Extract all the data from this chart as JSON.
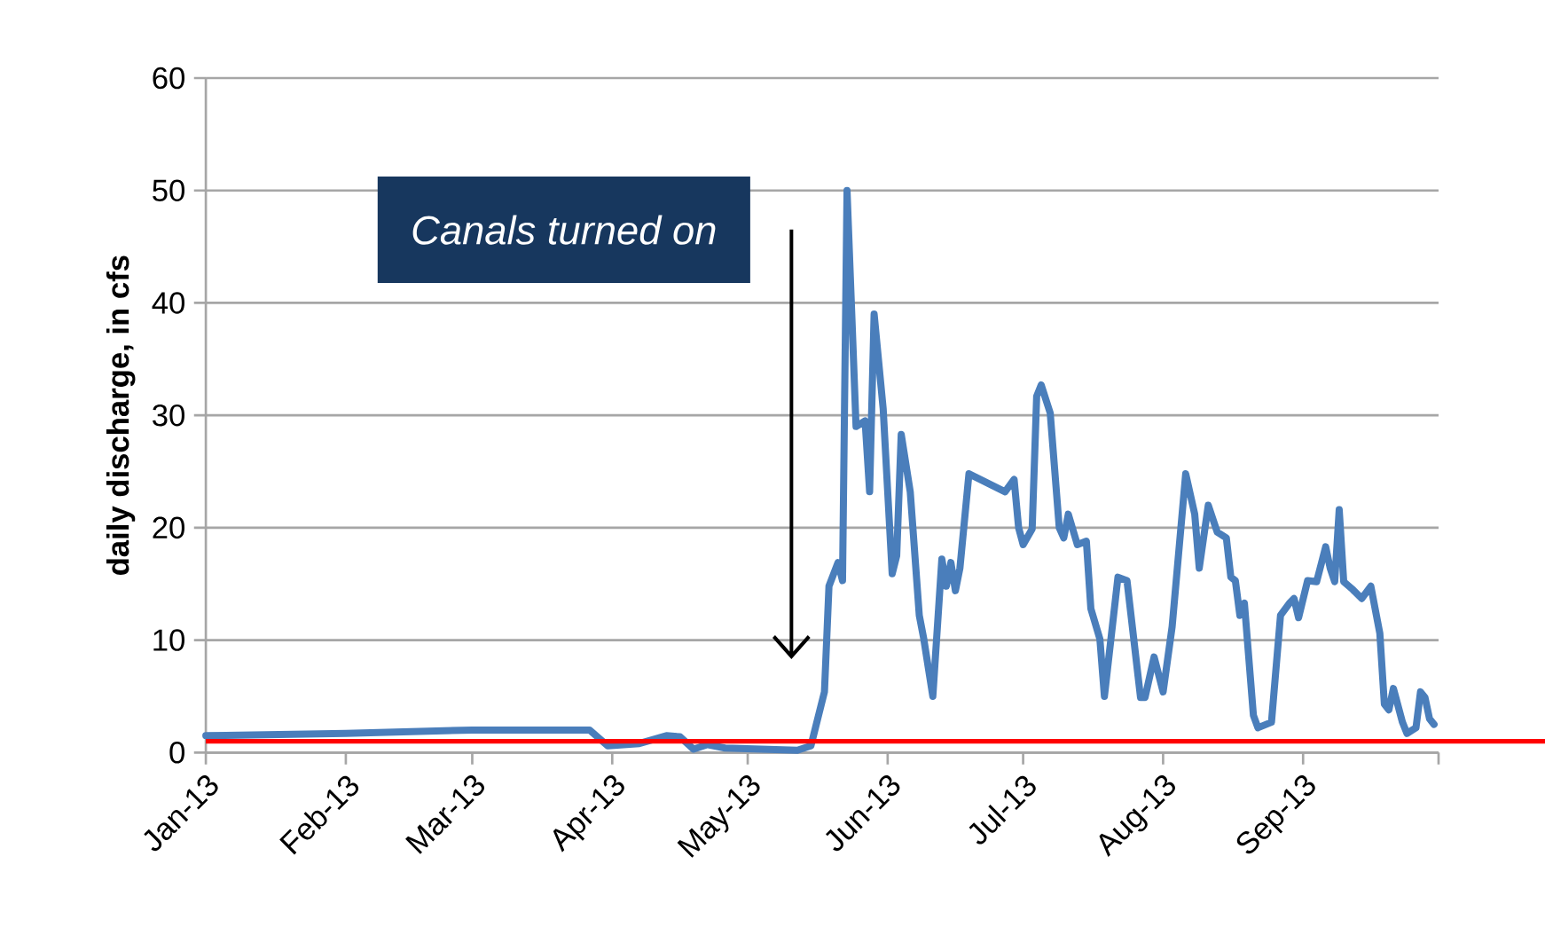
{
  "chart_data": {
    "type": "line",
    "ylabel": "daily discharge, in cfs",
    "xlim": [
      "2013-01-01",
      "2013-10-01"
    ],
    "xticks": [
      {
        "value": "2013-01-01",
        "label": "Jan-13"
      },
      {
        "value": "2013-02-01",
        "label": "Feb-13"
      },
      {
        "value": "2013-03-01",
        "label": "Mar-13"
      },
      {
        "value": "2013-04-01",
        "label": "Apr-13"
      },
      {
        "value": "2013-05-01",
        "label": "May-13"
      },
      {
        "value": "2013-06-01",
        "label": "Jun-13"
      },
      {
        "value": "2013-07-01",
        "label": "Jul-13"
      },
      {
        "value": "2013-08-01",
        "label": "Aug-13"
      },
      {
        "value": "2013-09-01",
        "label": "Sep-13"
      },
      {
        "value": "2013-10-01",
        "label": null
      }
    ],
    "ylim": [
      0,
      60
    ],
    "yticks": [
      0,
      10,
      20,
      30,
      40,
      50,
      60
    ],
    "grid": "y",
    "marker": "none",
    "line_style": "solid",
    "x": [
      "2013-01-01",
      "2013-02-01",
      "2013-03-01",
      "2013-03-27",
      "2013-03-31",
      "2013-04-07",
      "2013-04-13",
      "2013-04-16",
      "2013-04-19",
      "2013-04-22",
      "2013-04-26",
      "2013-05-12",
      "2013-05-15",
      "2013-05-16",
      "2013-05-18",
      "2013-05-19",
      "2013-05-21",
      "2013-05-22",
      "2013-05-23",
      "2013-05-25",
      "2013-05-27",
      "2013-05-28",
      "2013-05-29",
      "2013-05-31",
      "2013-06-02",
      "2013-06-03",
      "2013-06-04",
      "2013-06-06",
      "2013-06-08",
      "2013-06-09",
      "2013-06-11",
      "2013-06-13",
      "2013-06-14",
      "2013-06-15",
      "2013-06-16",
      "2013-06-17",
      "2013-06-19",
      "2013-06-27",
      "2013-06-29",
      "2013-06-30",
      "2013-07-01",
      "2013-07-03",
      "2013-07-04",
      "2013-07-05",
      "2013-07-07",
      "2013-07-09",
      "2013-07-10",
      "2013-07-11",
      "2013-07-13",
      "2013-07-15",
      "2013-07-16",
      "2013-07-18",
      "2013-07-19",
      "2013-07-22",
      "2013-07-24",
      "2013-07-27",
      "2013-07-28",
      "2013-07-30",
      "2013-08-01",
      "2013-08-03",
      "2013-08-06",
      "2013-08-08",
      "2013-08-09",
      "2013-08-11",
      "2013-08-13",
      "2013-08-15",
      "2013-08-16",
      "2013-08-17",
      "2013-08-18",
      "2013-08-19",
      "2013-08-21",
      "2013-08-22",
      "2013-08-25",
      "2013-08-27",
      "2013-08-29",
      "2013-08-30",
      "2013-08-31",
      "2013-09-02",
      "2013-09-04",
      "2013-09-06",
      "2013-09-07",
      "2013-09-08",
      "2013-09-09",
      "2013-09-10",
      "2013-09-12",
      "2013-09-14",
      "2013-09-16",
      "2013-09-18",
      "2013-09-19",
      "2013-09-20",
      "2013-09-21",
      "2013-09-23",
      "2013-09-24",
      "2013-09-26",
      "2013-09-27",
      "2013-09-28",
      "2013-09-29",
      "2013-09-30"
    ],
    "series": [
      {
        "color": "#4a7ebb",
        "values": [
          1.5,
          1.7,
          2.0,
          2.0,
          0.6,
          0.8,
          1.5,
          1.4,
          0.3,
          0.7,
          0.4,
          0.2,
          0.6,
          2.2,
          5.4,
          14.8,
          16.9,
          15.3,
          50,
          29,
          29.5,
          23.2,
          39,
          30.6,
          15.9,
          17.5,
          28.3,
          23.2,
          12.2,
          10.1,
          5,
          17.2,
          14.8,
          16.9,
          14.4,
          16.4,
          24.8,
          23.2,
          24.3,
          20,
          18.5,
          19.9,
          31.7,
          32.7,
          30.2,
          20,
          19.1,
          21.2,
          18.5,
          18.8,
          12.8,
          10.1,
          5,
          15.6,
          15.3,
          4.9,
          4.9,
          8.5,
          5.4,
          11.2,
          24.8,
          21.2,
          16.4,
          22,
          19.6,
          19.1,
          15.6,
          15.3,
          12.2,
          13.3,
          3.3,
          2.2,
          2.7,
          12.2,
          13.3,
          13.7,
          12,
          15.3,
          15.2,
          18.3,
          16.4,
          15.2,
          21.6,
          15.2,
          14.5,
          13.7,
          14.8,
          10.6,
          4.3,
          3.8,
          5.7,
          2.7,
          1.7,
          2.2,
          5.4,
          4.9,
          3,
          2.5
        ]
      }
    ],
    "ref_lines": [
      {
        "axis": "y",
        "value": 1,
        "color": "#ff0000"
      }
    ],
    "annotations": [
      "Canals turned on"
    ]
  }
}
